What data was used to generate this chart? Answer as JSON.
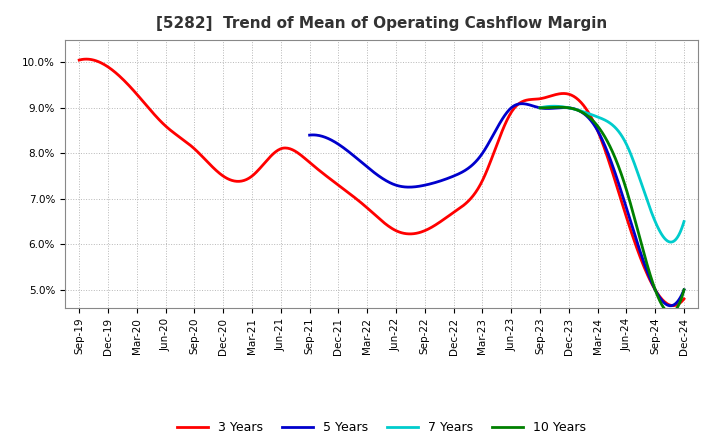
{
  "title": "[5282]  Trend of Mean of Operating Cashflow Margin",
  "background_color": "#ffffff",
  "grid_color": "#b0b0b0",
  "ylim": [
    0.046,
    0.105
  ],
  "yticks": [
    0.05,
    0.06,
    0.07,
    0.08,
    0.09,
    0.1
  ],
  "x_labels": [
    "Sep-19",
    "Dec-19",
    "Mar-20",
    "Jun-20",
    "Sep-20",
    "Dec-20",
    "Mar-21",
    "Jun-21",
    "Sep-21",
    "Dec-21",
    "Mar-22",
    "Jun-22",
    "Sep-22",
    "Dec-22",
    "Mar-23",
    "Jun-23",
    "Sep-23",
    "Dec-23",
    "Mar-24",
    "Jun-24",
    "Sep-24",
    "Dec-24"
  ],
  "series": [
    {
      "label": "3 Years",
      "color": "#ff0000",
      "x_indices": [
        0,
        1,
        2,
        3,
        4,
        5,
        6,
        7,
        8,
        9,
        10,
        11,
        12,
        13,
        14,
        15,
        16,
        17,
        18,
        19,
        20,
        21
      ],
      "y": [
        0.1005,
        0.099,
        0.093,
        0.086,
        0.081,
        0.075,
        0.075,
        0.081,
        0.078,
        0.073,
        0.068,
        0.063,
        0.063,
        0.067,
        0.074,
        0.089,
        0.092,
        0.093,
        0.085,
        0.066,
        0.05,
        0.048
      ],
      "lw": 2.0,
      "zorder": 3
    },
    {
      "label": "5 Years",
      "color": "#0000cc",
      "x_indices": [
        8,
        9,
        10,
        11,
        12,
        13,
        14,
        15,
        16,
        17,
        18,
        19,
        20,
        21
      ],
      "y": [
        0.084,
        0.082,
        0.077,
        0.073,
        0.073,
        0.075,
        0.08,
        0.09,
        0.09,
        0.09,
        0.085,
        0.068,
        0.05,
        0.05
      ],
      "lw": 2.0,
      "zorder": 4
    },
    {
      "label": "7 Years",
      "color": "#00cccc",
      "x_indices": [
        16,
        17,
        18,
        19,
        20,
        21
      ],
      "y": [
        0.09,
        0.09,
        0.088,
        0.082,
        0.065,
        0.065
      ],
      "lw": 2.0,
      "zorder": 5
    },
    {
      "label": "10 Years",
      "color": "#008000",
      "x_indices": [
        16,
        17,
        18,
        19,
        20,
        21
      ],
      "y": [
        0.09,
        0.09,
        0.086,
        0.072,
        0.05,
        0.05
      ],
      "lw": 2.0,
      "zorder": 6
    }
  ],
  "title_fontsize": 11,
  "tick_fontsize": 7.5,
  "legend_fontsize": 9
}
